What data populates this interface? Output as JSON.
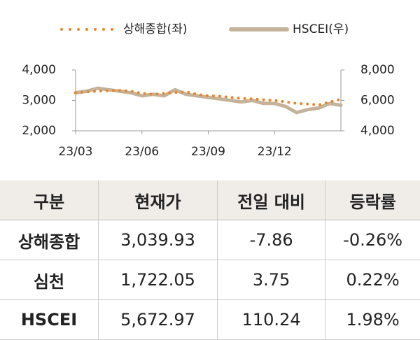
{
  "chart_data": {
    "type": "line",
    "categories": [
      "23/03",
      null,
      null,
      null,
      null,
      null,
      "23/06",
      null,
      null,
      null,
      null,
      null,
      "23/09",
      null,
      null,
      null,
      null,
      null,
      "23/12",
      null,
      null,
      null,
      null,
      null,
      null
    ],
    "series": [
      {
        "name": "상해종합(좌)",
        "color": "#e8852a",
        "style": "dotted",
        "values": [
          3250,
          3280,
          3300,
          3320,
          3330,
          3300,
          3230,
          3200,
          3230,
          3260,
          3280,
          3200,
          3150,
          3140,
          3100,
          3070,
          3050,
          3020,
          3000,
          2950,
          2900,
          2880,
          2850,
          2950,
          3040
        ]
      },
      {
        "name": "HSCEI(우)",
        "color": "#c4b39a",
        "style": "solid",
        "axis": "y2",
        "values": [
          6500,
          6600,
          6800,
          6700,
          6600,
          6500,
          6300,
          6400,
          6300,
          6700,
          6400,
          6300,
          6200,
          6100,
          6000,
          5900,
          6000,
          5800,
          5800,
          5600,
          5200,
          5400,
          5500,
          5800,
          5673
        ]
      }
    ],
    "ylim": [
      2000,
      4000
    ],
    "yticks": [
      {
        "value": 2000,
        "label": "2,000"
      },
      {
        "value": 3000,
        "label": "3,000"
      },
      {
        "value": 4000,
        "label": "4,000"
      }
    ],
    "y2lim": [
      4000,
      8000
    ],
    "y2ticks": [
      {
        "value": 4000,
        "label": "4,000"
      },
      {
        "value": 6000,
        "label": "6,000"
      },
      {
        "value": 8000,
        "label": "8,000"
      }
    ],
    "legend": "top"
  },
  "table": {
    "header": [
      "구분",
      "현재가",
      "전일 대비",
      "등락률"
    ],
    "rows": [
      [
        "상해종합",
        "3,039.93",
        "-7.86",
        "-0.26%"
      ],
      [
        "심천",
        "1,722.05",
        "3.75",
        "0.22%"
      ],
      [
        "HSCEI",
        "5,672.97",
        "110.24",
        "1.98%"
      ]
    ]
  }
}
